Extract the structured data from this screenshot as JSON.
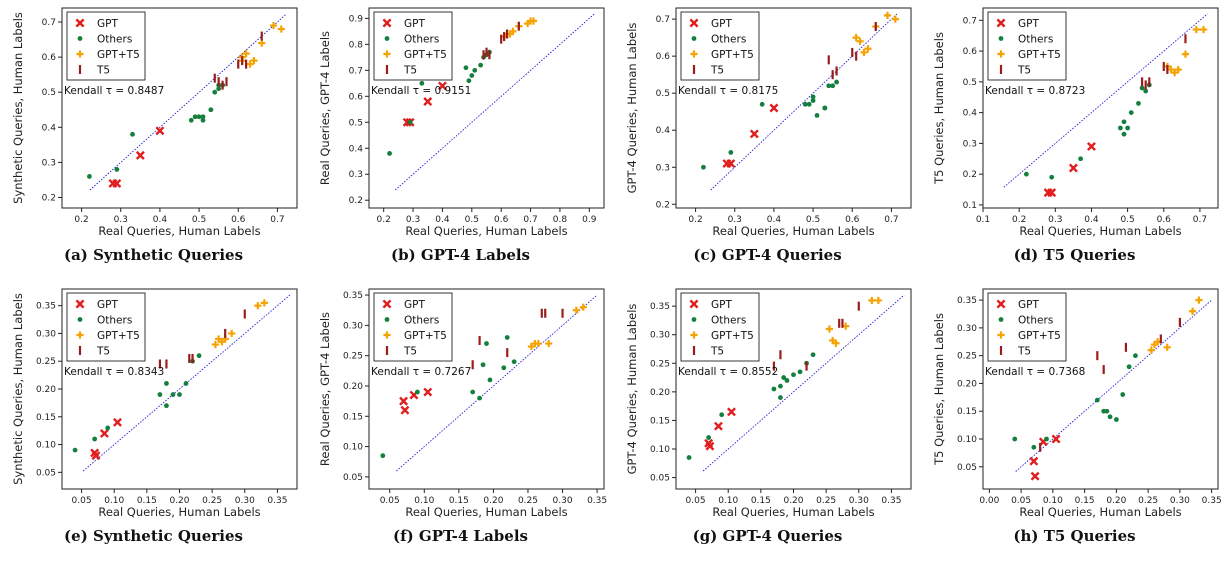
{
  "colors": {
    "GPT": "#e11d1d",
    "Others": "#15803d",
    "GPT+T5": "#f5a300",
    "T5": "#9b1c1c",
    "diagonal": "#1f1fd6"
  },
  "chart_data": [
    {
      "type": "scatter",
      "caption": "(a) Synthetic Queries",
      "xlabel": "Real Queries, Human Labels",
      "ylabel": "Synthetic Queries, Human Labels",
      "xlim": [
        0.15,
        0.75
      ],
      "ylim": [
        0.17,
        0.74
      ],
      "xticks": [
        "0.2",
        "0.3",
        "0.4",
        "0.5",
        "0.6",
        "0.7"
      ],
      "yticks": [
        "0.2",
        "0.3",
        "0.4",
        "0.5",
        "0.6",
        "0.7"
      ],
      "annotation": "Kendall τ = 0.8487",
      "legend": [
        "GPT",
        "Others",
        "GPT+T5",
        "T5"
      ],
      "series": [
        {
          "name": "GPT",
          "marker": "x",
          "x": [
            0.28,
            0.29,
            0.35,
            0.4
          ],
          "y": [
            0.24,
            0.24,
            0.32,
            0.39
          ]
        },
        {
          "name": "Others",
          "marker": "dot",
          "x": [
            0.22,
            0.29,
            0.33,
            0.48,
            0.49,
            0.5,
            0.51,
            0.53,
            0.54,
            0.55,
            0.56,
            0.51,
            0.55,
            0.56
          ],
          "y": [
            0.26,
            0.28,
            0.38,
            0.42,
            0.43,
            0.43,
            0.42,
            0.45,
            0.5,
            0.51,
            0.52,
            0.43,
            0.52,
            0.52
          ]
        },
        {
          "name": "GPT+T5",
          "marker": "plus",
          "x": [
            0.61,
            0.62,
            0.63,
            0.64,
            0.66,
            0.69,
            0.71,
            0.61
          ],
          "y": [
            0.6,
            0.61,
            0.58,
            0.59,
            0.64,
            0.69,
            0.68,
            0.59
          ]
        },
        {
          "name": "T5",
          "marker": "bar",
          "x": [
            0.54,
            0.55,
            0.56,
            0.57,
            0.6,
            0.61,
            0.62,
            0.66
          ],
          "y": [
            0.54,
            0.53,
            0.52,
            0.53,
            0.58,
            0.59,
            0.58,
            0.66
          ]
        }
      ]
    },
    {
      "type": "scatter",
      "caption": "(b) GPT-4 Labels",
      "xlabel": "Real Queries, Human Labels",
      "ylabel": "Real Queries, GPT-4 Labels",
      "xlim": [
        0.15,
        0.95
      ],
      "ylim": [
        0.17,
        0.94
      ],
      "xticks": [
        "0.2",
        "0.3",
        "0.4",
        "0.5",
        "0.6",
        "0.7",
        "0.8",
        "0.9"
      ],
      "yticks": [
        "0.2",
        "0.3",
        "0.4",
        "0.5",
        "0.6",
        "0.7",
        "0.8",
        "0.9"
      ],
      "annotation": "Kendall τ = 0.9151",
      "legend": [
        "GPT",
        "Others",
        "GPT+T5",
        "T5"
      ],
      "series": [
        {
          "name": "GPT",
          "marker": "x",
          "x": [
            0.28,
            0.29,
            0.35,
            0.4
          ],
          "y": [
            0.5,
            0.5,
            0.58,
            0.64
          ]
        },
        {
          "name": "Others",
          "marker": "dot",
          "x": [
            0.22,
            0.29,
            0.33,
            0.48,
            0.49,
            0.5,
            0.51,
            0.53,
            0.54,
            0.55,
            0.56
          ],
          "y": [
            0.38,
            0.5,
            0.65,
            0.71,
            0.66,
            0.68,
            0.7,
            0.72,
            0.75,
            0.76,
            0.77
          ]
        },
        {
          "name": "GPT+T5",
          "marker": "plus",
          "x": [
            0.61,
            0.62,
            0.63,
            0.64,
            0.66,
            0.69,
            0.7,
            0.71
          ],
          "y": [
            0.83,
            0.84,
            0.84,
            0.85,
            0.87,
            0.88,
            0.89,
            0.89
          ]
        },
        {
          "name": "T5",
          "marker": "bar",
          "x": [
            0.54,
            0.55,
            0.56,
            0.6,
            0.61,
            0.62,
            0.66
          ],
          "y": [
            0.76,
            0.77,
            0.76,
            0.82,
            0.83,
            0.84,
            0.87
          ]
        }
      ]
    },
    {
      "type": "scatter",
      "caption": "(c) GPT-4 Queries",
      "xlabel": "Real Queries, Human Labels",
      "ylabel": "GPT-4 Queries, Human Labels",
      "xlim": [
        0.15,
        0.75
      ],
      "ylim": [
        0.19,
        0.73
      ],
      "xticks": [
        "0.2",
        "0.3",
        "0.4",
        "0.5",
        "0.6",
        "0.7"
      ],
      "yticks": [
        "0.2",
        "0.3",
        "0.4",
        "0.5",
        "0.6",
        "0.7"
      ],
      "annotation": "Kendall τ = 0.8175",
      "legend": [
        "GPT",
        "Others",
        "GPT+T5",
        "T5"
      ],
      "series": [
        {
          "name": "GPT",
          "marker": "x",
          "x": [
            0.28,
            0.29,
            0.35,
            0.4
          ],
          "y": [
            0.31,
            0.31,
            0.39,
            0.46
          ]
        },
        {
          "name": "Others",
          "marker": "dot",
          "x": [
            0.22,
            0.29,
            0.37,
            0.48,
            0.49,
            0.5,
            0.51,
            0.53,
            0.54,
            0.55,
            0.56,
            0.5,
            0.53
          ],
          "y": [
            0.3,
            0.34,
            0.47,
            0.47,
            0.47,
            0.48,
            0.44,
            0.46,
            0.52,
            0.52,
            0.53,
            0.49,
            0.46
          ]
        },
        {
          "name": "GPT+T5",
          "marker": "plus",
          "x": [
            0.61,
            0.62,
            0.63,
            0.64,
            0.66,
            0.69,
            0.71
          ],
          "y": [
            0.65,
            0.64,
            0.61,
            0.62,
            0.68,
            0.71,
            0.7
          ]
        },
        {
          "name": "T5",
          "marker": "bar",
          "x": [
            0.54,
            0.55,
            0.56,
            0.6,
            0.61,
            0.66
          ],
          "y": [
            0.59,
            0.55,
            0.56,
            0.61,
            0.6,
            0.68
          ]
        }
      ]
    },
    {
      "type": "scatter",
      "caption": "(d) T5 Queries",
      "xlabel": "Real Queries, Human Labels",
      "ylabel": "T5 Queries, Human Labels",
      "xlim": [
        0.1,
        0.75
      ],
      "ylim": [
        0.09,
        0.74
      ],
      "xticks": [
        "0.1",
        "0.2",
        "0.3",
        "0.4",
        "0.5",
        "0.6",
        "0.7"
      ],
      "yticks": [
        "0.1",
        "0.2",
        "0.3",
        "0.4",
        "0.5",
        "0.6",
        "0.7"
      ],
      "annotation": "Kendall τ = 0.8723",
      "legend": [
        "GPT",
        "Others",
        "GPT+T5",
        "T5"
      ],
      "series": [
        {
          "name": "GPT",
          "marker": "x",
          "x": [
            0.28,
            0.29,
            0.35,
            0.4
          ],
          "y": [
            0.14,
            0.14,
            0.22,
            0.29
          ]
        },
        {
          "name": "Others",
          "marker": "dot",
          "x": [
            0.22,
            0.29,
            0.37,
            0.48,
            0.49,
            0.5,
            0.51,
            0.53,
            0.54,
            0.55,
            0.56,
            0.49
          ],
          "y": [
            0.2,
            0.19,
            0.25,
            0.35,
            0.37,
            0.35,
            0.4,
            0.43,
            0.48,
            0.47,
            0.49,
            0.33
          ]
        },
        {
          "name": "GPT+T5",
          "marker": "plus",
          "x": [
            0.61,
            0.62,
            0.63,
            0.64,
            0.66,
            0.69,
            0.71
          ],
          "y": [
            0.55,
            0.54,
            0.53,
            0.54,
            0.59,
            0.67,
            0.67
          ]
        },
        {
          "name": "T5",
          "marker": "bar",
          "x": [
            0.54,
            0.55,
            0.56,
            0.6,
            0.61,
            0.66
          ],
          "y": [
            0.5,
            0.49,
            0.5,
            0.55,
            0.54,
            0.64
          ]
        }
      ]
    },
    {
      "type": "scatter",
      "caption": "(e) Synthetic Queries",
      "xlabel": "Real Queries, Human Labels",
      "ylabel": "Synthetic Queries, Human Labels",
      "xlim": [
        0.02,
        0.38
      ],
      "ylim": [
        0.02,
        0.38
      ],
      "xticks": [
        "0.05",
        "0.10",
        "0.15",
        "0.20",
        "0.25",
        "0.30",
        "0.35"
      ],
      "yticks": [
        "0.05",
        "0.10",
        "0.15",
        "0.20",
        "0.25",
        "0.30",
        "0.35"
      ],
      "annotation": "Kendall τ = 0.8343",
      "legend": [
        "GPT",
        "Others",
        "GPT+T5",
        "T5"
      ],
      "series": [
        {
          "name": "GPT",
          "marker": "x",
          "x": [
            0.07,
            0.072,
            0.085,
            0.105
          ],
          "y": [
            0.085,
            0.08,
            0.12,
            0.14
          ]
        },
        {
          "name": "Others",
          "marker": "dot",
          "x": [
            0.04,
            0.07,
            0.09,
            0.17,
            0.18,
            0.19,
            0.2,
            0.21,
            0.18,
            0.22,
            0.23
          ],
          "y": [
            0.09,
            0.11,
            0.13,
            0.19,
            0.17,
            0.19,
            0.19,
            0.21,
            0.21,
            0.25,
            0.26
          ]
        },
        {
          "name": "GPT+T5",
          "marker": "plus",
          "x": [
            0.255,
            0.26,
            0.265,
            0.27,
            0.28,
            0.32,
            0.33
          ],
          "y": [
            0.28,
            0.29,
            0.285,
            0.29,
            0.3,
            0.35,
            0.355
          ]
        },
        {
          "name": "T5",
          "marker": "bar",
          "x": [
            0.17,
            0.18,
            0.215,
            0.22,
            0.27,
            0.3
          ],
          "y": [
            0.245,
            0.245,
            0.255,
            0.255,
            0.3,
            0.335
          ]
        }
      ]
    },
    {
      "type": "scatter",
      "caption": "(f) GPT-4 Labels",
      "xlabel": "Real Queries, Human Labels",
      "ylabel": "Real Queries, GPT-4 Labels",
      "xlim": [
        0.02,
        0.36
      ],
      "ylim": [
        0.03,
        0.36
      ],
      "xticks": [
        "0.05",
        "0.10",
        "0.15",
        "0.20",
        "0.25",
        "0.30",
        "0.35"
      ],
      "yticks": [
        "0.05",
        "0.10",
        "0.15",
        "0.20",
        "0.25",
        "0.30",
        "0.35"
      ],
      "annotation": "Kendall τ = 0.7267",
      "legend": [
        "GPT",
        "Others",
        "GPT+T5",
        "T5"
      ],
      "series": [
        {
          "name": "GPT",
          "marker": "x",
          "x": [
            0.07,
            0.072,
            0.085,
            0.105
          ],
          "y": [
            0.175,
            0.16,
            0.185,
            0.19
          ]
        },
        {
          "name": "Others",
          "marker": "dot",
          "x": [
            0.04,
            0.09,
            0.17,
            0.18,
            0.185,
            0.19,
            0.195,
            0.22,
            0.23,
            0.215
          ],
          "y": [
            0.085,
            0.19,
            0.19,
            0.18,
            0.235,
            0.27,
            0.21,
            0.28,
            0.24,
            0.23
          ]
        },
        {
          "name": "GPT+T5",
          "marker": "plus",
          "x": [
            0.255,
            0.26,
            0.265,
            0.28,
            0.32,
            0.33
          ],
          "y": [
            0.265,
            0.27,
            0.27,
            0.27,
            0.325,
            0.33
          ]
        },
        {
          "name": "T5",
          "marker": "bar",
          "x": [
            0.17,
            0.18,
            0.22,
            0.27,
            0.275,
            0.3
          ],
          "y": [
            0.235,
            0.275,
            0.255,
            0.32,
            0.32,
            0.32
          ]
        }
      ]
    },
    {
      "type": "scatter",
      "caption": "(g) GPT-4 Queries",
      "xlabel": "Real Queries, Human Labels",
      "ylabel": "GPT-4 Queries, Human Labels",
      "xlim": [
        0.02,
        0.38
      ],
      "ylim": [
        0.03,
        0.38
      ],
      "xticks": [
        "0.05",
        "0.10",
        "0.15",
        "0.20",
        "0.25",
        "0.30",
        "0.35"
      ],
      "yticks": [
        "0.05",
        "0.10",
        "0.15",
        "0.20",
        "0.25",
        "0.30",
        "0.35"
      ],
      "annotation": "Kendall τ = 0.8552",
      "legend": [
        "GPT",
        "Others",
        "GPT+T5",
        "T5"
      ],
      "series": [
        {
          "name": "GPT",
          "marker": "x",
          "x": [
            0.07,
            0.072,
            0.085,
            0.105
          ],
          "y": [
            0.11,
            0.105,
            0.14,
            0.165
          ]
        },
        {
          "name": "Others",
          "marker": "dot",
          "x": [
            0.04,
            0.07,
            0.09,
            0.17,
            0.18,
            0.185,
            0.19,
            0.2,
            0.21,
            0.22,
            0.23,
            0.18
          ],
          "y": [
            0.085,
            0.12,
            0.16,
            0.205,
            0.21,
            0.225,
            0.22,
            0.23,
            0.235,
            0.25,
            0.265,
            0.19
          ]
        },
        {
          "name": "GPT+T5",
          "marker": "plus",
          "x": [
            0.255,
            0.26,
            0.265,
            0.28,
            0.32,
            0.33
          ],
          "y": [
            0.31,
            0.29,
            0.285,
            0.315,
            0.36,
            0.36
          ]
        },
        {
          "name": "T5",
          "marker": "bar",
          "x": [
            0.17,
            0.18,
            0.22,
            0.27,
            0.275,
            0.3
          ],
          "y": [
            0.245,
            0.265,
            0.245,
            0.32,
            0.32,
            0.35
          ]
        }
      ]
    },
    {
      "type": "scatter",
      "caption": "(h) T5 Queries",
      "xlabel": "Real Queries, Human Labels",
      "ylabel": "T5 Queries, Human Labels",
      "xlim": [
        -0.01,
        0.36
      ],
      "ylim": [
        0.01,
        0.37
      ],
      "xticks": [
        "0.00",
        "0.05",
        "0.10",
        "0.15",
        "0.20",
        "0.25",
        "0.30",
        "0.35"
      ],
      "yticks": [
        "0.05",
        "0.10",
        "0.15",
        "0.20",
        "0.25",
        "0.30",
        "0.35"
      ],
      "annotation": "Kendall τ = 0.7368",
      "legend": [
        "GPT",
        "Others",
        "GPT+T5",
        "T5"
      ],
      "series": [
        {
          "name": "GPT",
          "marker": "x",
          "x": [
            0.07,
            0.072,
            0.085,
            0.105
          ],
          "y": [
            0.06,
            0.033,
            0.095,
            0.1
          ]
        },
        {
          "name": "Others",
          "marker": "dot",
          "x": [
            0.04,
            0.07,
            0.09,
            0.17,
            0.18,
            0.185,
            0.19,
            0.2,
            0.21,
            0.22,
            0.23
          ],
          "y": [
            0.1,
            0.085,
            0.1,
            0.17,
            0.15,
            0.15,
            0.14,
            0.135,
            0.18,
            0.23,
            0.25
          ]
        },
        {
          "name": "GPT+T5",
          "marker": "plus",
          "x": [
            0.255,
            0.26,
            0.265,
            0.28,
            0.32,
            0.33
          ],
          "y": [
            0.26,
            0.27,
            0.275,
            0.265,
            0.33,
            0.35
          ]
        },
        {
          "name": "T5",
          "marker": "bar",
          "x": [
            0.08,
            0.17,
            0.18,
            0.215,
            0.27,
            0.3
          ],
          "y": [
            0.085,
            0.25,
            0.225,
            0.265,
            0.28,
            0.31
          ]
        }
      ]
    }
  ]
}
